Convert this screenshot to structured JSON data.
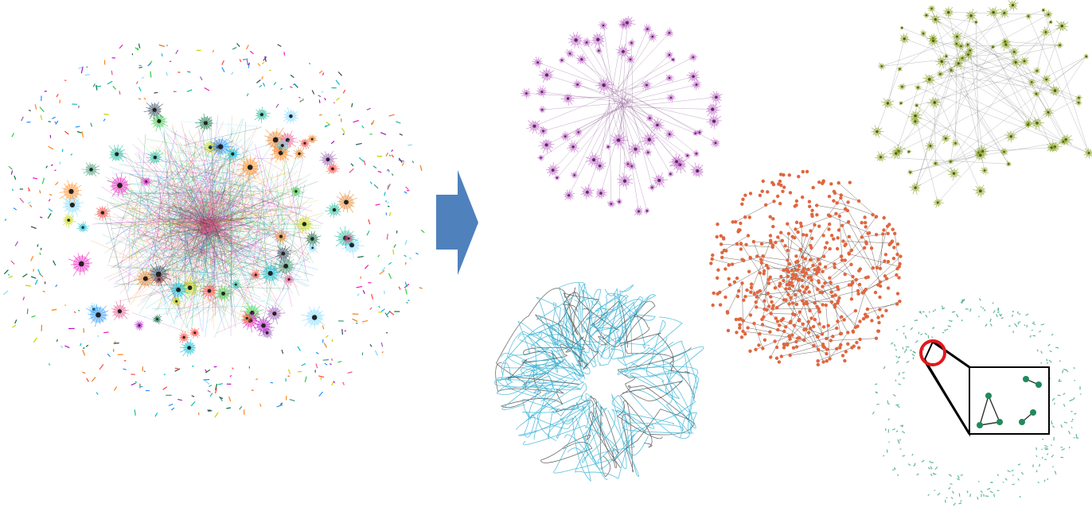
{
  "figure": {
    "panels": [
      {
        "id": "full",
        "description_color": "multi",
        "colors": [
          "#1e90ff",
          "#e8548c",
          "#2ecc40",
          "#00bcd4",
          "#ff851b",
          "#b10dc9",
          "#0b6e3b",
          "#c7d300",
          "#7fdbff",
          "#f012be",
          "#3d9970",
          "#ff4136",
          "#9b59b6",
          "#1abc9c",
          "#e67e22",
          "#34495e"
        ]
      },
      {
        "id": "purple",
        "color": "#c064c8",
        "dark": "#5a2a60"
      },
      {
        "id": "olive",
        "color": "#8aa423",
        "dark": "#4b5d10"
      },
      {
        "id": "orange",
        "color": "#e0663e",
        "dark": "#3a2a22"
      },
      {
        "id": "blue",
        "color": "#3fb6d6"
      },
      {
        "id": "sparse",
        "color": "#3aa77a",
        "node": "#1f8a5c"
      }
    ],
    "arrow_color": "#4f81bd",
    "highlight_color": "#e3171b"
  }
}
